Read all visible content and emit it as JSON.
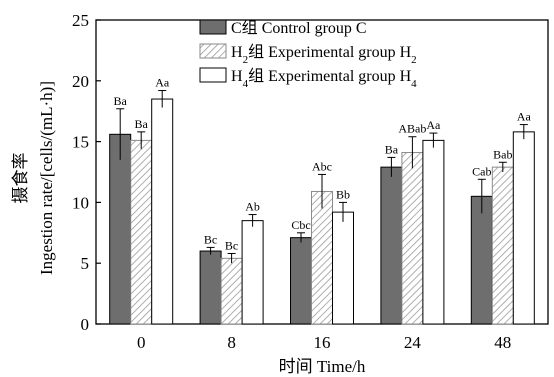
{
  "chart_data": {
    "type": "bar",
    "categories": [
      "0",
      "8",
      "16",
      "24",
      "48"
    ],
    "xlabel": "时间 Time/h",
    "ylabel_cn": "摄食率",
    "ylabel": "Ingestion rate/[cells/(mL·h)]",
    "ylim": [
      0,
      25
    ],
    "yticks": [
      0,
      5,
      10,
      15,
      20,
      25
    ],
    "grid": false,
    "legend_position": "top-right",
    "series": [
      {
        "name_cn": "C组",
        "name_base": "Control group C",
        "name_sub": "",
        "fill": "#6e6e6e",
        "pattern": "solid",
        "values": [
          15.6,
          6.0,
          7.1,
          12.9,
          10.5
        ],
        "errors": [
          2.1,
          0.3,
          0.4,
          0.8,
          1.4
        ],
        "labels": [
          "Ba",
          "Bc",
          "Cbc",
          "Ba",
          "Cab"
        ]
      },
      {
        "name_cn": "H2组",
        "name_base": "Experimental group H",
        "name_sub": "2",
        "fill": "#ffffff",
        "pattern": "hatch",
        "values": [
          15.1,
          5.4,
          10.9,
          14.1,
          12.9
        ],
        "errors": [
          0.7,
          0.4,
          1.4,
          1.3,
          0.4
        ],
        "labels": [
          "Ba",
          "Bc",
          "Abc",
          "ABab",
          "Bab"
        ]
      },
      {
        "name_cn": "H4组",
        "name_base": "Experimental group H",
        "name_sub": "4",
        "fill": "#ffffff",
        "pattern": "open",
        "values": [
          18.5,
          8.5,
          9.2,
          15.1,
          15.8
        ],
        "errors": [
          0.7,
          0.5,
          0.8,
          0.6,
          0.6
        ],
        "labels": [
          "Aa",
          "Ab",
          "Bb",
          "Aa",
          "Aa"
        ]
      }
    ],
    "legend": [
      {
        "prefix": "C组",
        "text": "Control group C",
        "sub": ""
      },
      {
        "prefix": "H",
        "prefix_sub": "2",
        "prefix_after": "组",
        "text": "Experimental group H",
        "sub": "2"
      },
      {
        "prefix": "H",
        "prefix_sub": "4",
        "prefix_after": "组",
        "text": "Experimental group H",
        "sub": "4"
      }
    ]
  }
}
